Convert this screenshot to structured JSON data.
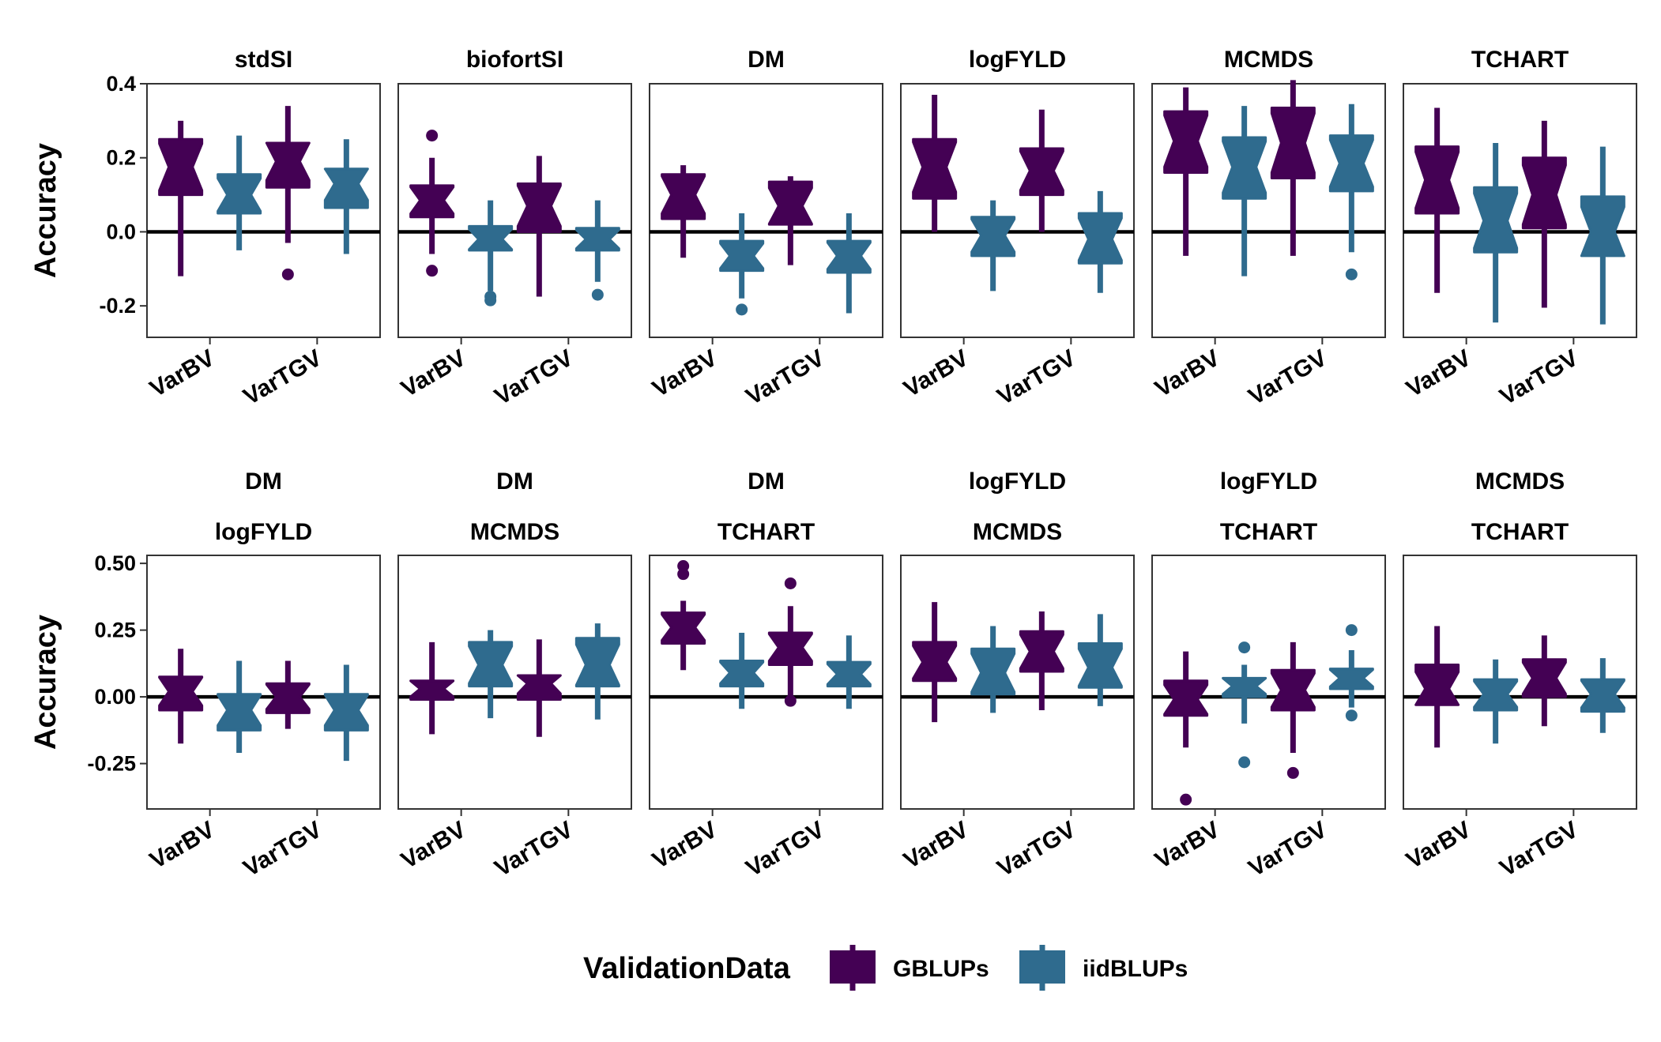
{
  "chart_data": {
    "type": "boxplot",
    "title": "",
    "ylabel": "Accuracy",
    "categories": [
      "VarBV",
      "VarTGV"
    ],
    "legend": {
      "title": "ValidationData",
      "position": "bottom",
      "entries": [
        {
          "name": "GBLUPs",
          "color": "#440154"
        },
        {
          "name": "iidBLUPs",
          "color": "#2F6B8E"
        }
      ]
    },
    "reference_line_y": 0,
    "rows": [
      {
        "ylim": [
          -0.285,
          0.4
        ],
        "yticks": [
          0.4,
          0.2,
          0.0,
          -0.2
        ],
        "ytick_labels": [
          "0.4",
          "0.2",
          "0.0",
          "-0.2"
        ],
        "panels": [
          {
            "strip": [
              "stdSI"
            ],
            "boxes": [
              {
                "category": "VarBV",
                "series": "GBLUPs",
                "min": -0.12,
                "q1": 0.1,
                "median": 0.175,
                "q3": 0.25,
                "max": 0.3,
                "outliers": []
              },
              {
                "category": "VarBV",
                "series": "iidBLUPs",
                "min": -0.05,
                "q1": 0.05,
                "median": 0.1,
                "q3": 0.155,
                "max": 0.26,
                "outliers": []
              },
              {
                "category": "VarTGV",
                "series": "GBLUPs",
                "min": -0.03,
                "q1": 0.12,
                "median": 0.19,
                "q3": 0.24,
                "max": 0.34,
                "outliers": [
                  -0.115
                ]
              },
              {
                "category": "VarTGV",
                "series": "iidBLUPs",
                "min": -0.06,
                "q1": 0.065,
                "median": 0.13,
                "q3": 0.17,
                "max": 0.25,
                "outliers": []
              }
            ]
          },
          {
            "strip": [
              "biofortSI"
            ],
            "boxes": [
              {
                "category": "VarBV",
                "series": "GBLUPs",
                "min": -0.06,
                "q1": 0.04,
                "median": 0.085,
                "q3": 0.125,
                "max": 0.2,
                "outliers": [
                  0.26,
                  -0.105
                ]
              },
              {
                "category": "VarBV",
                "series": "iidBLUPs",
                "min": -0.16,
                "q1": -0.05,
                "median": -0.02,
                "q3": 0.015,
                "max": 0.085,
                "outliers": [
                  -0.175,
                  -0.185
                ]
              },
              {
                "category": "VarTGV",
                "series": "GBLUPs",
                "min": -0.175,
                "q1": 0.0,
                "median": 0.07,
                "q3": 0.13,
                "max": 0.205,
                "outliers": []
              },
              {
                "category": "VarTGV",
                "series": "iidBLUPs",
                "min": -0.135,
                "q1": -0.05,
                "median": -0.02,
                "q3": 0.01,
                "max": 0.085,
                "outliers": [
                  -0.17
                ]
              }
            ]
          },
          {
            "strip": [
              "DM"
            ],
            "boxes": [
              {
                "category": "VarBV",
                "series": "GBLUPs",
                "min": -0.07,
                "q1": 0.035,
                "median": 0.1,
                "q3": 0.155,
                "max": 0.18,
                "outliers": []
              },
              {
                "category": "VarBV",
                "series": "iidBLUPs",
                "min": -0.18,
                "q1": -0.105,
                "median": -0.065,
                "q3": -0.025,
                "max": 0.05,
                "outliers": [
                  -0.21
                ]
              },
              {
                "category": "VarTGV",
                "series": "GBLUPs",
                "min": -0.09,
                "q1": 0.02,
                "median": 0.07,
                "q3": 0.135,
                "max": 0.15,
                "outliers": []
              },
              {
                "category": "VarTGV",
                "series": "iidBLUPs",
                "min": -0.22,
                "q1": -0.11,
                "median": -0.065,
                "q3": -0.025,
                "max": 0.05,
                "outliers": []
              }
            ]
          },
          {
            "strip": [
              "logFYLD"
            ],
            "boxes": [
              {
                "category": "VarBV",
                "series": "GBLUPs",
                "min": 0.0,
                "q1": 0.09,
                "median": 0.175,
                "q3": 0.25,
                "max": 0.37,
                "outliers": []
              },
              {
                "category": "VarBV",
                "series": "iidBLUPs",
                "min": -0.16,
                "q1": -0.065,
                "median": -0.01,
                "q3": 0.04,
                "max": 0.085,
                "outliers": []
              },
              {
                "category": "VarTGV",
                "series": "GBLUPs",
                "min": 0.0,
                "q1": 0.1,
                "median": 0.165,
                "q3": 0.225,
                "max": 0.33,
                "outliers": []
              },
              {
                "category": "VarTGV",
                "series": "iidBLUPs",
                "min": -0.165,
                "q1": -0.085,
                "median": -0.02,
                "q3": 0.05,
                "max": 0.11,
                "outliers": []
              }
            ]
          },
          {
            "strip": [
              "MCMDS"
            ],
            "boxes": [
              {
                "category": "VarBV",
                "series": "GBLUPs",
                "min": -0.065,
                "q1": 0.16,
                "median": 0.245,
                "q3": 0.325,
                "max": 0.39,
                "outliers": []
              },
              {
                "category": "VarBV",
                "series": "iidBLUPs",
                "min": -0.12,
                "q1": 0.09,
                "median": 0.175,
                "q3": 0.255,
                "max": 0.34,
                "outliers": []
              },
              {
                "category": "VarTGV",
                "series": "GBLUPs",
                "min": -0.065,
                "q1": 0.145,
                "median": 0.24,
                "q3": 0.335,
                "max": 0.41,
                "outliers": []
              },
              {
                "category": "VarTGV",
                "series": "iidBLUPs",
                "min": -0.055,
                "q1": 0.11,
                "median": 0.185,
                "q3": 0.26,
                "max": 0.345,
                "outliers": [
                  -0.115
                ]
              }
            ]
          },
          {
            "strip": [
              "TCHART"
            ],
            "boxes": [
              {
                "category": "VarBV",
                "series": "GBLUPs",
                "min": -0.165,
                "q1": 0.05,
                "median": 0.14,
                "q3": 0.23,
                "max": 0.335,
                "outliers": []
              },
              {
                "category": "VarBV",
                "series": "iidBLUPs",
                "min": -0.245,
                "q1": -0.055,
                "median": 0.03,
                "q3": 0.12,
                "max": 0.24,
                "outliers": []
              },
              {
                "category": "VarTGV",
                "series": "GBLUPs",
                "min": -0.205,
                "q1": 0.01,
                "median": 0.1,
                "q3": 0.2,
                "max": 0.3,
                "outliers": []
              },
              {
                "category": "VarTGV",
                "series": "iidBLUPs",
                "min": -0.25,
                "q1": -0.065,
                "median": 0.0,
                "q3": 0.095,
                "max": 0.23,
                "outliers": []
              }
            ]
          }
        ]
      },
      {
        "ylim": [
          -0.42,
          0.53
        ],
        "yticks": [
          0.5,
          0.25,
          0.0,
          -0.25
        ],
        "ytick_labels": [
          "0.50",
          "0.25",
          "0.00",
          "-0.25"
        ],
        "panels": [
          {
            "strip": [
              "DM",
              "logFYLD"
            ],
            "boxes": [
              {
                "category": "VarBV",
                "series": "GBLUPs",
                "min": -0.175,
                "q1": -0.05,
                "median": 0.02,
                "q3": 0.075,
                "max": 0.18,
                "outliers": []
              },
              {
                "category": "VarBV",
                "series": "iidBLUPs",
                "min": -0.21,
                "q1": -0.125,
                "median": -0.05,
                "q3": 0.01,
                "max": 0.135,
                "outliers": []
              },
              {
                "category": "VarTGV",
                "series": "GBLUPs",
                "min": -0.12,
                "q1": -0.06,
                "median": 0.0,
                "q3": 0.05,
                "max": 0.135,
                "outliers": []
              },
              {
                "category": "VarTGV",
                "series": "iidBLUPs",
                "min": -0.24,
                "q1": -0.125,
                "median": -0.05,
                "q3": 0.01,
                "max": 0.12,
                "outliers": []
              }
            ]
          },
          {
            "strip": [
              "DM",
              "MCMDS"
            ],
            "boxes": [
              {
                "category": "VarBV",
                "series": "GBLUPs",
                "min": -0.14,
                "q1": -0.01,
                "median": 0.03,
                "q3": 0.06,
                "max": 0.205,
                "outliers": []
              },
              {
                "category": "VarBV",
                "series": "iidBLUPs",
                "min": -0.08,
                "q1": 0.04,
                "median": 0.12,
                "q3": 0.205,
                "max": 0.25,
                "outliers": []
              },
              {
                "category": "VarTGV",
                "series": "GBLUPs",
                "min": -0.15,
                "q1": -0.01,
                "median": 0.05,
                "q3": 0.08,
                "max": 0.215,
                "outliers": []
              },
              {
                "category": "VarTGV",
                "series": "iidBLUPs",
                "min": -0.085,
                "q1": 0.04,
                "median": 0.12,
                "q3": 0.22,
                "max": 0.275,
                "outliers": []
              }
            ]
          },
          {
            "strip": [
              "DM",
              "TCHART"
            ],
            "boxes": [
              {
                "category": "VarBV",
                "series": "GBLUPs",
                "min": 0.1,
                "q1": 0.2,
                "median": 0.26,
                "q3": 0.315,
                "max": 0.36,
                "outliers": [
                  0.49,
                  0.46
                ]
              },
              {
                "category": "VarBV",
                "series": "iidBLUPs",
                "min": -0.045,
                "q1": 0.04,
                "median": 0.09,
                "q3": 0.135,
                "max": 0.24,
                "outliers": []
              },
              {
                "category": "VarTGV",
                "series": "GBLUPs",
                "min": 0.0,
                "q1": 0.12,
                "median": 0.185,
                "q3": 0.24,
                "max": 0.34,
                "outliers": [
                  0.425,
                  -0.015
                ]
              },
              {
                "category": "VarTGV",
                "series": "iidBLUPs",
                "min": -0.045,
                "q1": 0.04,
                "median": 0.085,
                "q3": 0.13,
                "max": 0.23,
                "outliers": []
              }
            ]
          },
          {
            "strip": [
              "logFYLD",
              "MCMDS"
            ],
            "boxes": [
              {
                "category": "VarBV",
                "series": "GBLUPs",
                "min": -0.095,
                "q1": 0.06,
                "median": 0.13,
                "q3": 0.205,
                "max": 0.355,
                "outliers": []
              },
              {
                "category": "VarBV",
                "series": "iidBLUPs",
                "min": -0.06,
                "q1": 0.01,
                "median": 0.09,
                "q3": 0.18,
                "max": 0.265,
                "outliers": []
              },
              {
                "category": "VarTGV",
                "series": "GBLUPs",
                "min": -0.05,
                "q1": 0.095,
                "median": 0.17,
                "q3": 0.245,
                "max": 0.32,
                "outliers": []
              },
              {
                "category": "VarTGV",
                "series": "iidBLUPs",
                "min": -0.035,
                "q1": 0.035,
                "median": 0.11,
                "q3": 0.2,
                "max": 0.31,
                "outliers": []
              }
            ]
          },
          {
            "strip": [
              "logFYLD",
              "TCHART"
            ],
            "boxes": [
              {
                "category": "VarBV",
                "series": "GBLUPs",
                "min": -0.19,
                "q1": -0.07,
                "median": -0.01,
                "q3": 0.06,
                "max": 0.17,
                "outliers": [
                  -0.385
                ]
              },
              {
                "category": "VarBV",
                "series": "iidBLUPs",
                "min": -0.1,
                "q1": 0.0,
                "median": 0.04,
                "q3": 0.07,
                "max": 0.12,
                "outliers": [
                  0.185,
                  -0.245
                ]
              },
              {
                "category": "VarTGV",
                "series": "GBLUPs",
                "min": -0.21,
                "q1": -0.05,
                "median": 0.025,
                "q3": 0.1,
                "max": 0.205,
                "outliers": [
                  -0.285
                ]
              },
              {
                "category": "VarTGV",
                "series": "iidBLUPs",
                "min": -0.04,
                "q1": 0.03,
                "median": 0.07,
                "q3": 0.105,
                "max": 0.175,
                "outliers": [
                  0.25,
                  -0.07
                ]
              }
            ]
          },
          {
            "strip": [
              "MCMDS",
              "TCHART"
            ],
            "boxes": [
              {
                "category": "VarBV",
                "series": "GBLUPs",
                "min": -0.19,
                "q1": -0.03,
                "median": 0.03,
                "q3": 0.12,
                "max": 0.265,
                "outliers": []
              },
              {
                "category": "VarBV",
                "series": "iidBLUPs",
                "min": -0.175,
                "q1": -0.05,
                "median": 0.01,
                "q3": 0.065,
                "max": 0.14,
                "outliers": []
              },
              {
                "category": "VarTGV",
                "series": "GBLUPs",
                "min": -0.11,
                "q1": 0.0,
                "median": 0.07,
                "q3": 0.14,
                "max": 0.23,
                "outliers": []
              },
              {
                "category": "VarTGV",
                "series": "iidBLUPs",
                "min": -0.135,
                "q1": -0.055,
                "median": 0.01,
                "q3": 0.065,
                "max": 0.145,
                "outliers": []
              }
            ]
          }
        ]
      }
    ]
  }
}
